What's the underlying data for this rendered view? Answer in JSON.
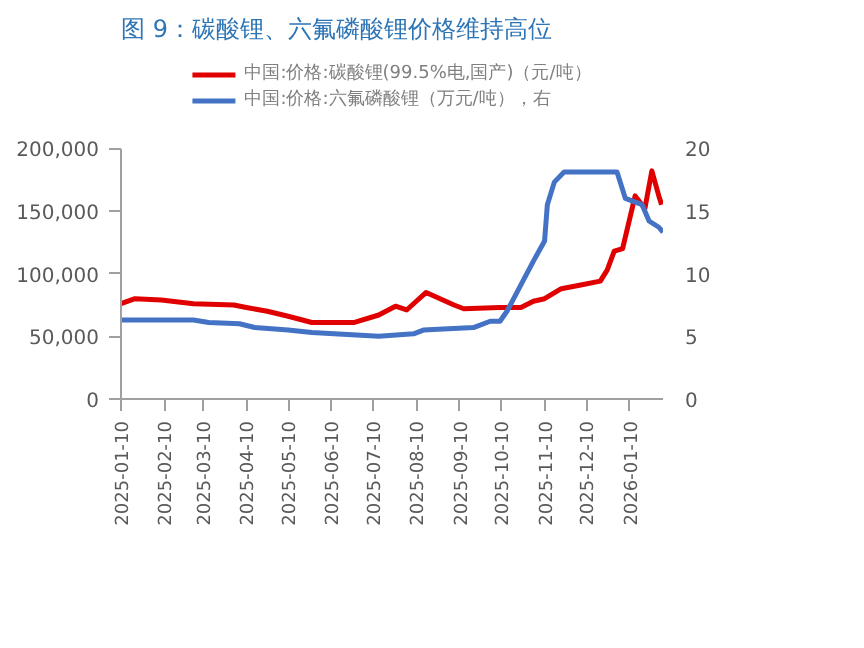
{
  "chart_data": {
    "type": "line",
    "title": "图 9：碳酸锂、六氟磷酸锂价格维持高位",
    "x": [
      "2025-01-10",
      "2025-01-20",
      "2025-02-08",
      "2025-03-03",
      "2025-04-01",
      "2025-04-10",
      "2025-04-25",
      "2025-05-10",
      "2025-05-27",
      "2025-06-26",
      "2025-07-14",
      "2025-07-26",
      "2025-08-03",
      "2025-08-17",
      "2025-09-06",
      "2025-09-13",
      "2025-10-09",
      "2025-10-24",
      "2025-11-02",
      "2025-11-10",
      "2025-11-22",
      "2025-12-06",
      "2025-12-20",
      "2025-12-25",
      "2025-12-30",
      "2026-01-05",
      "2026-01-14",
      "2026-01-21",
      "2026-01-26",
      "2026-01-31",
      "2026-02-02"
    ],
    "series": [
      {
        "name": "中国:价格:碳酸锂(99.5%电,国产)（元/吨）",
        "color": "#e00000",
        "values": [
          76000,
          80000,
          79000,
          76000,
          75000,
          73000,
          70000,
          66000,
          61000,
          61000,
          67000,
          74000,
          71000,
          85000,
          75000,
          72000,
          73000,
          73000,
          78000,
          80000,
          88000,
          91000,
          94000,
          103000,
          118000,
          120000,
          162000,
          152000,
          182000,
          162000,
          155000
        ]
      },
      {
        "name": "中国:价格:六氟磷酸锂（万元/吨），右",
        "color": "#4472c4",
        "axis": "y2",
        "x": [
          "2025-01-10",
          "2025-03-03",
          "2025-03-14",
          "2025-04-05",
          "2025-04-16",
          "2025-05-10",
          "2025-05-27",
          "2025-07-14",
          "2025-08-08",
          "2025-08-15",
          "2025-09-20",
          "2025-10-02",
          "2025-10-09",
          "2025-10-14",
          "2025-10-24",
          "2025-11-02",
          "2025-11-10",
          "2025-11-12",
          "2025-11-17",
          "2025-11-24",
          "2026-01-01",
          "2026-01-07",
          "2026-01-19",
          "2026-01-24",
          "2026-01-31",
          "2026-02-03"
        ],
        "values": [
          6.3,
          6.3,
          6.1,
          6.0,
          5.7,
          5.5,
          5.3,
          5.0,
          5.2,
          5.5,
          5.7,
          6.2,
          6.2,
          7.0,
          9.1,
          11.0,
          12.6,
          15.5,
          17.3,
          18.1,
          18.1,
          16.0,
          15.5,
          14.2,
          13.7,
          13.3
        ]
      }
    ],
    "xlim": [
      "2025-01-10",
      "2026-02-03"
    ],
    "xticks": [
      "2025-01-10",
      "2025-02-10",
      "2025-03-10",
      "2025-04-10",
      "2025-05-10",
      "2025-06-10",
      "2025-07-10",
      "2025-08-10",
      "2025-09-10",
      "2025-10-10",
      "2025-11-10",
      "2025-12-10",
      "2026-01-10"
    ],
    "ylim": [
      0,
      200000
    ],
    "yticks": [
      0,
      {
        "value": 50000,
        "label": "50,000"
      },
      {
        "value": 100000,
        "label": "100,000"
      },
      {
        "value": 150000,
        "label": "150,000"
      },
      {
        "value": 200000,
        "label": "200,000"
      }
    ],
    "y2lim": [
      0,
      20
    ],
    "y2ticks": [
      0,
      5,
      10,
      15,
      20
    ],
    "grid": false,
    "legend": "top",
    "line_style": "solid"
  }
}
